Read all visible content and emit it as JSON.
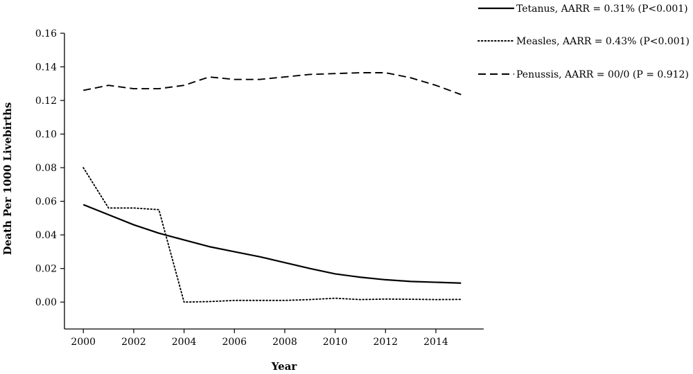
{
  "chart_data": {
    "type": "line",
    "title": "",
    "xlabel": "Year",
    "ylabel": "Death Per 1000 Livebirths",
    "xlim": [
      1999.25,
      2015.9
    ],
    "ylim": [
      -0.016,
      0.16
    ],
    "x_ticks": [
      "2000",
      "2002",
      "2004",
      "2006",
      "2008",
      "2010",
      "2012",
      "2014"
    ],
    "x_tick_values": [
      2000,
      2002,
      2004,
      2006,
      2008,
      2010,
      2012,
      2014
    ],
    "y_ticks": [
      "0.00",
      "0.02",
      "0.04",
      "0.06",
      "0.08",
      "0.10",
      "0.12",
      "0.14",
      "0.16"
    ],
    "y_tick_values": [
      0,
      0.02,
      0.04,
      0.06,
      0.08,
      0.1,
      0.12,
      0.14,
      0.16
    ],
    "grid": false,
    "legend_position": "top-right",
    "series": [
      {
        "name": "Tetanus, AARR = 0.31% (P<0.001)",
        "style": "solid",
        "x": [
          2000,
          2001,
          2002,
          2003,
          2004,
          2005,
          2006,
          2007,
          2008,
          2009,
          2010,
          2011,
          2012,
          2013,
          2014,
          2015
        ],
        "values": [
          0.058,
          0.052,
          0.046,
          0.041,
          0.037,
          0.033,
          0.03,
          0.027,
          0.0235,
          0.02,
          0.0168,
          0.0148,
          0.0133,
          0.0123,
          0.0118,
          0.0113
        ]
      },
      {
        "name": "Measles, AARR = 0.43% (P<0.001)",
        "style": "dotted",
        "x": [
          2000,
          2001,
          2002,
          2003,
          2004,
          2005,
          2006,
          2007,
          2008,
          2009,
          2010,
          2011,
          2012,
          2013,
          2014,
          2015
        ],
        "values": [
          0.08,
          0.056,
          0.056,
          0.055,
          0.0,
          0.0003,
          0.001,
          0.001,
          0.001,
          0.0015,
          0.0023,
          0.0015,
          0.0018,
          0.0017,
          0.0015,
          0.0016
        ]
      },
      {
        "name": "Penussis, AARR = 00/0 (P = 0.912)",
        "style": "dashed",
        "x": [
          2000,
          2001,
          2002,
          2003,
          2004,
          2005,
          2006,
          2007,
          2008,
          2009,
          2010,
          2011,
          2012,
          2013,
          2014,
          2015
        ],
        "values": [
          0.126,
          0.129,
          0.127,
          0.127,
          0.129,
          0.134,
          0.1325,
          0.1325,
          0.134,
          0.1355,
          0.136,
          0.1365,
          0.1365,
          0.1335,
          0.129,
          0.1235
        ]
      }
    ]
  },
  "colors": {
    "line": "#000000",
    "axis": "#000000",
    "background": "#ffffff"
  }
}
